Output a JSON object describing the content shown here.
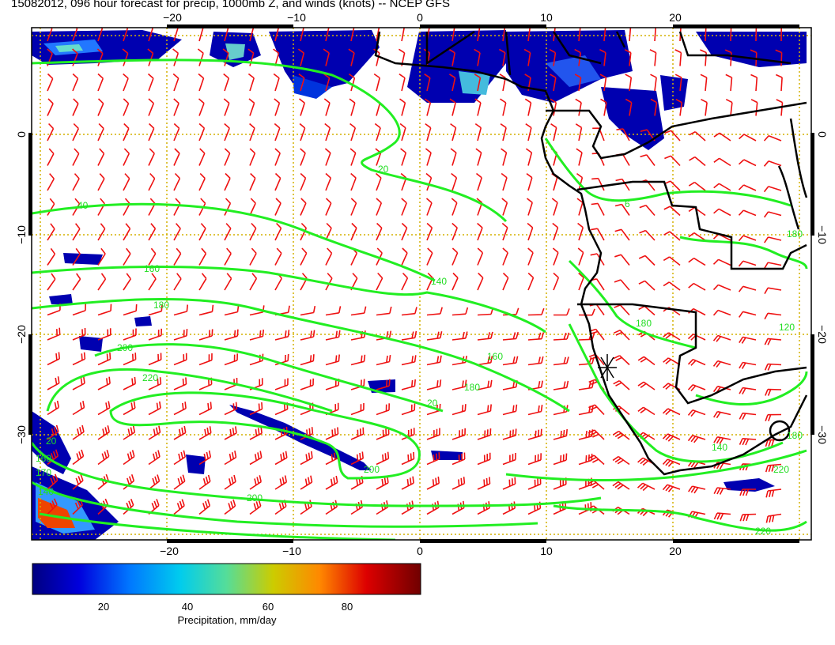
{
  "title": "15082012, 096 hour forecast for precip, 1000mb Z, and winds (knots) -- NCEP GFS",
  "axes": {
    "x_ticks": [
      "−20",
      "−10",
      "0",
      "10",
      "20"
    ],
    "y_ticks": [
      "0",
      "−10",
      "−20",
      "−30"
    ]
  },
  "contour_labels": [
    "20",
    "40",
    "160",
    "180",
    "200",
    "220",
    "140",
    "160",
    "180",
    "20",
    "140",
    "180",
    "120",
    "200",
    "220",
    "6",
    "180",
    "160",
    "170",
    "20",
    "140",
    "220",
    "200",
    "180"
  ],
  "colorbar": {
    "ticks": [
      "20",
      "40",
      "60",
      "80"
    ],
    "label": "Precipitation, mm/day",
    "colors": [
      "#000080",
      "#0000cc",
      "#0044ff",
      "#0099ff",
      "#00ddee",
      "#44ddaa",
      "#99dd55",
      "#dddd00",
      "#ff9900",
      "#ff3300",
      "#cc0000",
      "#800000"
    ]
  },
  "colors": {
    "contour": "#22ee22",
    "barbs": "#ee1111",
    "grid": "#d4b000",
    "land": "#000000"
  },
  "marker": {
    "icon": "star-marker-icon"
  }
}
